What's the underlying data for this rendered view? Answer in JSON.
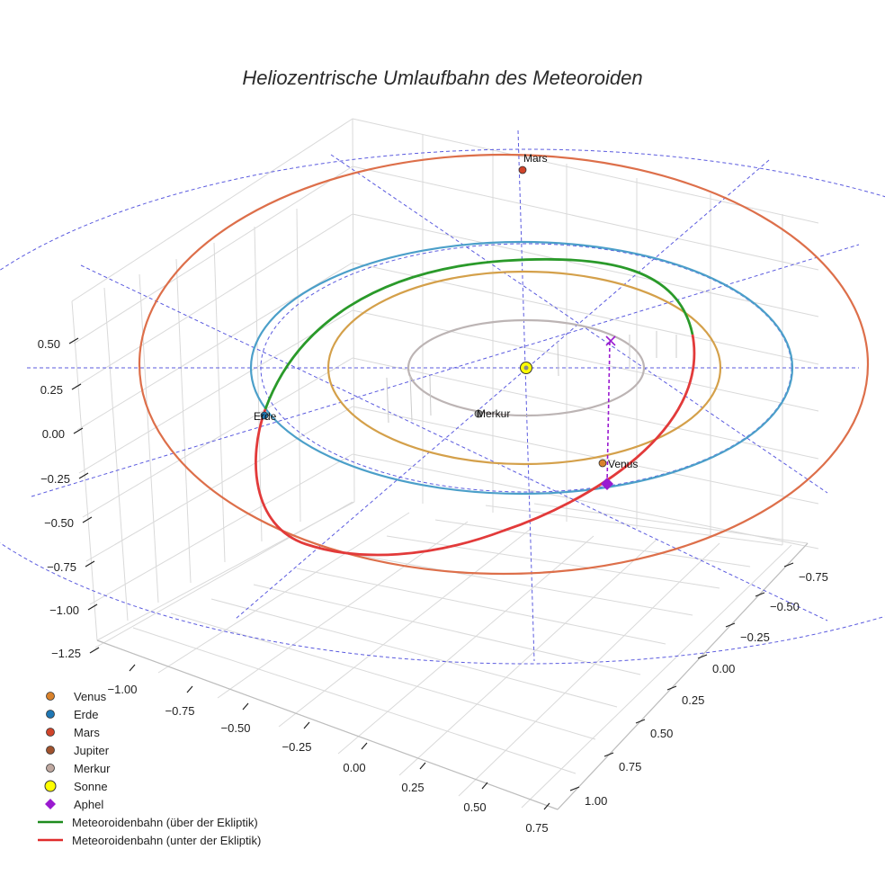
{
  "chart_data": {
    "type": "scatter3d",
    "title": "Heliozentrische Umlaufbahn des Meteoroiden",
    "axes": {
      "x_ticks": [
        "−1.00",
        "−0.75",
        "−0.50",
        "−0.25",
        "0.00",
        "0.25",
        "0.50",
        "0.75"
      ],
      "y_ticks": [
        "−0.75",
        "−0.50",
        "−0.25",
        "0.00",
        "0.25",
        "0.50",
        "0.75",
        "1.00"
      ],
      "z_ticks": [
        "0.50",
        "0.25",
        "0.00",
        "−0.25",
        "−0.50",
        "−0.75",
        "−1.00",
        "−1.25"
      ],
      "x_range": [
        -1.0,
        0.75
      ],
      "y_range": [
        -0.75,
        1.0
      ],
      "z_range": [
        -1.25,
        0.5
      ]
    },
    "orbits": [
      {
        "name": "Merkur",
        "radius_au": 0.39,
        "color": "#bcb4b4"
      },
      {
        "name": "Venus",
        "radius_au": 0.72,
        "color": "#d4a04a"
      },
      {
        "name": "Erde",
        "radius_au": 1.0,
        "color": "#4b9fc9"
      },
      {
        "name": "Mars",
        "radius_au": 1.52,
        "color": "#dd6f4a"
      }
    ],
    "planets": [
      {
        "name": "Venus",
        "label": "Venus",
        "color": "#d9822b"
      },
      {
        "name": "Erde",
        "label": "Erde",
        "color": "#1f77b4"
      },
      {
        "name": "Mars",
        "label": "Mars",
        "color": "#d0442a"
      },
      {
        "name": "Merkur",
        "label": "Merkur",
        "color": "#9a9a9a"
      }
    ],
    "meteoroid": {
      "above_ecliptic_color": "#2a9a2a",
      "below_ecliptic_color": "#e23a3a",
      "aphel_color": "#9a1ad0"
    },
    "legend": [
      {
        "name": "Venus",
        "symbol": "circle",
        "color": "#d9822b"
      },
      {
        "name": "Erde",
        "symbol": "circle",
        "color": "#1f77b4"
      },
      {
        "name": "Mars",
        "symbol": "circle",
        "color": "#d0442a"
      },
      {
        "name": "Jupiter",
        "symbol": "circle",
        "color": "#a0522d"
      },
      {
        "name": "Merkur",
        "symbol": "circle",
        "color": "#bfa8a0"
      },
      {
        "name": "Sonne",
        "symbol": "circle-large",
        "color": "#ffff00"
      },
      {
        "name": "Aphel",
        "symbol": "diamond",
        "color": "#9a1ad0"
      },
      {
        "name": "Meteoroidenbahn (über der Ekliptik)",
        "symbol": "line",
        "color": "#1e8c1e"
      },
      {
        "name": "Meteoroidenbahn (unter der Ekliptik)",
        "symbol": "line",
        "color": "#e02b2b"
      }
    ]
  }
}
